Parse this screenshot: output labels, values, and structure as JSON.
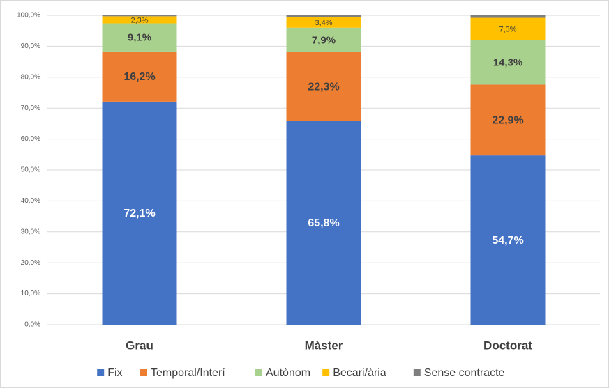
{
  "chart_data": {
    "type": "stacked_bar",
    "categories": [
      "Grau",
      "Màster",
      "Doctorat"
    ],
    "series": [
      {
        "name": "Fix",
        "color": "#4472c4",
        "values": [
          72.1,
          65.8,
          54.7
        ],
        "value_labels": [
          "72,1%",
          "65,8%",
          "54,7%"
        ]
      },
      {
        "name": "Temporal/Interí",
        "color": "#ed7d31",
        "values": [
          16.2,
          22.3,
          22.9
        ],
        "value_labels": [
          "16,2%",
          "22,3%",
          "22,9%"
        ]
      },
      {
        "name": "Autònom",
        "color": "#a9d18e",
        "values": [
          9.1,
          7.9,
          14.3
        ],
        "value_labels": [
          "9,1%",
          "7,9%",
          "14,3%"
        ]
      },
      {
        "name": "Becari/ària",
        "color": "#ffc000",
        "values": [
          2.3,
          3.4,
          7.3
        ],
        "value_labels": [
          "2,3%",
          "3,4%",
          "7,3%"
        ]
      },
      {
        "name": "Sense contracte",
        "color": "#7f7f7f",
        "values": [
          0.3,
          0.6,
          0.8
        ]
      }
    ],
    "ylim": [
      0,
      100
    ],
    "yticks": [
      {
        "value": 0,
        "label": "0,0%"
      },
      {
        "value": 10,
        "label": "10,0%"
      },
      {
        "value": 20,
        "label": "20,0%"
      },
      {
        "value": 30,
        "label": "30,0%"
      },
      {
        "value": 40,
        "label": "40,0%"
      },
      {
        "value": 50,
        "label": "50,0%"
      },
      {
        "value": 60,
        "label": "60,0%"
      },
      {
        "value": 70,
        "label": "70,0%"
      },
      {
        "value": 80,
        "label": "80,0%"
      },
      {
        "value": 90,
        "label": "90,0%"
      },
      {
        "value": 100,
        "label": "100,0%"
      }
    ],
    "grid": true,
    "legend": "bottom"
  }
}
